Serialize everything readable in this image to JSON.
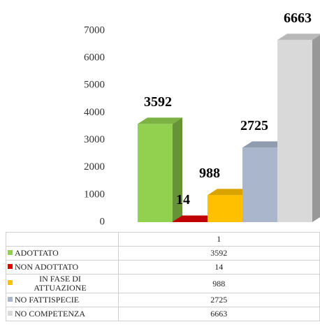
{
  "chart_data": {
    "type": "bar3d",
    "categories": [
      "1"
    ],
    "series": [
      {
        "name": "ADOTTATO",
        "color": "#92d050",
        "values": [
          3592
        ]
      },
      {
        "name": "NON ADOTTATO",
        "color": "#e00000",
        "values": [
          14
        ]
      },
      {
        "name": "IN FASE DI ATTUAZIONE",
        "color": "#ffc000",
        "values": [
          988
        ]
      },
      {
        "name": "NO FATTISPECIE",
        "color": "#a9b6cb",
        "values": [
          2725
        ]
      },
      {
        "name": "NO COMPETENZA",
        "color": "#d9d9d9",
        "values": [
          6663
        ]
      }
    ],
    "ylim": [
      0,
      7000
    ],
    "yticks": [
      0,
      1000,
      2000,
      3000,
      4000,
      5000,
      6000,
      7000
    ],
    "grid": false
  }
}
